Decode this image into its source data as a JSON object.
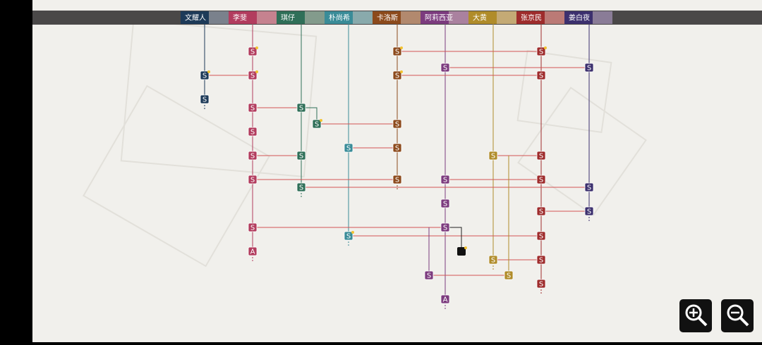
{
  "characters": [
    {
      "name": "文耀人"
    },
    {
      "name": "李斐"
    },
    {
      "name": "琪仔"
    },
    {
      "name": "朴尚希"
    },
    {
      "name": "卡洛斯"
    },
    {
      "name": "阿莉西亚"
    },
    {
      "name": "大黄"
    },
    {
      "name": "张京民"
    },
    {
      "name": "姜白夜"
    }
  ],
  "nodes": [
    {
      "label": "S"
    },
    {
      "label": "S"
    },
    {
      "label": "S"
    },
    {
      "label": "S"
    },
    {
      "label": "S"
    },
    {
      "label": "S"
    },
    {
      "label": "S"
    },
    {
      "label": "A"
    },
    {
      "label": "S"
    },
    {
      "label": "S"
    },
    {
      "label": "S"
    },
    {
      "label": "S"
    },
    {
      "label": "S"
    },
    {
      "label": "S"
    },
    {
      "label": "S"
    },
    {
      "label": "S"
    },
    {
      "label": "S"
    },
    {
      "label": "S"
    },
    {
      "label": "S"
    },
    {
      "label": "S"
    },
    {
      "label": "S"
    },
    {
      "label": "S"
    },
    {
      "label": "S"
    },
    {
      "label": "S"
    },
    {
      "label": "S"
    },
    {
      "label": "A"
    },
    {
      "label": "S"
    },
    {
      "label": "S"
    },
    {
      "label": "S"
    },
    {
      "label": "S"
    },
    {
      "label": "S"
    },
    {
      "label": "S"
    },
    {
      "label": "S"
    },
    {
      "label": "S"
    },
    {
      "label": "S"
    },
    {
      "label": "S"
    },
    {
      "label": "S"
    },
    {
      "label": "S"
    },
    {
      "label": "S"
    },
    {
      "label": "S"
    },
    {
      "label": "S"
    }
  ]
}
